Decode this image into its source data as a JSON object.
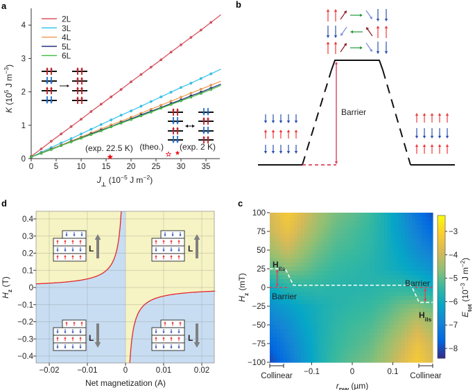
{
  "panel_labels": {
    "a": "a",
    "b": "b",
    "c": "c",
    "d": "d"
  },
  "chart_data": [
    {
      "panel": "a",
      "type": "line",
      "xlabel": [
        "J",
        "⊥",
        " (10",
        "−5",
        " J m",
        "−2",
        ")"
      ],
      "ylabel": [
        "K",
        " (10",
        "5",
        " J m",
        "−3",
        ")"
      ],
      "xlim": [
        0,
        38
      ],
      "ylim": [
        0,
        4.4
      ],
      "xticks": [
        "0",
        "5",
        "10",
        "15",
        "20",
        "25",
        "30",
        "35"
      ],
      "yticks": [
        "0",
        "1",
        "2",
        "3",
        "4"
      ],
      "grid": false,
      "legend": "top-left",
      "x": [
        0,
        2,
        4,
        6,
        8,
        10,
        12,
        14,
        16,
        18,
        20,
        22,
        24,
        26,
        28,
        30,
        32,
        34,
        36
      ],
      "series": [
        {
          "name": "2L",
          "color": "#d9545f",
          "values": [
            0.07,
            0.29,
            0.52,
            0.74,
            0.96,
            1.18,
            1.41,
            1.63,
            1.85,
            2.07,
            2.3,
            2.52,
            2.74,
            2.96,
            3.19,
            3.41,
            3.63,
            3.85,
            4.08
          ]
        },
        {
          "name": "3L",
          "color": "#35c6f0",
          "values": [
            0.05,
            0.19,
            0.33,
            0.47,
            0.6,
            0.74,
            0.88,
            1.02,
            1.16,
            1.3,
            1.43,
            1.57,
            1.71,
            1.85,
            1.99,
            2.13,
            2.26,
            2.4,
            2.54
          ]
        },
        {
          "name": "4L",
          "color": "#f0a055",
          "values": [
            0.05,
            0.17,
            0.29,
            0.41,
            0.53,
            0.65,
            0.77,
            0.89,
            1.01,
            1.12,
            1.24,
            1.36,
            1.48,
            1.6,
            1.72,
            1.84,
            1.96,
            2.08,
            2.2
          ]
        },
        {
          "name": "5L",
          "color": "#25307e",
          "values": [
            0.05,
            0.16,
            0.28,
            0.39,
            0.51,
            0.62,
            0.74,
            0.85,
            0.96,
            1.08,
            1.19,
            1.31,
            1.42,
            1.53,
            1.65,
            1.76,
            1.88,
            1.99,
            2.11
          ]
        },
        {
          "name": "6L",
          "color": "#4cc04a",
          "values": [
            0.05,
            0.16,
            0.27,
            0.39,
            0.5,
            0.61,
            0.72,
            0.83,
            0.95,
            1.06,
            1.17,
            1.28,
            1.39,
            1.51,
            1.62,
            1.73,
            1.84,
            1.95,
            2.07
          ]
        }
      ],
      "annotations": [
        {
          "text": "(exp. 22.5 K)",
          "x": 15.8,
          "y": 0.05,
          "marker": "filled-star",
          "color": "#e8141e"
        },
        {
          "text": "(theo.)",
          "x": 27.5,
          "y": 0.13,
          "marker": "hollow-star",
          "color": "#e8141e"
        },
        {
          "text": "(exp. 2 K)",
          "x": 29.3,
          "y": 0.17,
          "marker": "filled-star",
          "color": "#e8141e"
        }
      ]
    },
    {
      "panel": "b",
      "type": "diagram",
      "barrier_label": "Barrier",
      "colors": {
        "up": "#ee3a3a",
        "down": "#2a4fb0",
        "tilt_up": "#8b1a1a",
        "tilt_down": "#7a8fd6",
        "flip": "#1f9a3a",
        "barrier": "#d9425a"
      }
    },
    {
      "panel": "c",
      "type": "heatmap",
      "xlabel": [
        "r",
        "DW",
        " (µm)"
      ],
      "ylabel": [
        "H",
        "z",
        " (mT)"
      ],
      "xlim": [
        -0.2,
        0.2
      ],
      "ylim": [
        -100,
        100
      ],
      "xticks": [
        "−0.1",
        "0",
        "0.1"
      ],
      "yticks": [
        "100",
        "75",
        "50",
        "25",
        "0",
        "−25",
        "−50",
        "−75",
        "−100"
      ],
      "colorbar": {
        "label": [
          "E",
          "tot",
          " (10",
          "−3",
          " J m",
          "−2",
          ")"
        ],
        "range": [
          -8.4,
          -2.3
        ],
        "ticks": [
          "−3",
          "−4",
          "−5",
          "−6",
          "−7",
          "−8"
        ],
        "colormap": "parula"
      },
      "r": [
        -0.2,
        -0.16,
        -0.12,
        -0.08,
        -0.04,
        0,
        0.04,
        0.08,
        0.12,
        0.16,
        0.2
      ],
      "H": [
        100,
        75,
        50,
        25,
        0,
        -25,
        -50,
        -75,
        -100
      ],
      "values": [
        [
          -3.8,
          -3.2,
          -3.8,
          -4.4,
          -4.8,
          -5.0,
          -5.3,
          -5.8,
          -6.5,
          -7.3,
          -8.0
        ],
        [
          -4.0,
          -3.5,
          -4.1,
          -4.6,
          -5.0,
          -5.2,
          -5.4,
          -5.8,
          -6.4,
          -7.0,
          -7.6
        ],
        [
          -4.4,
          -4.0,
          -4.5,
          -4.9,
          -5.2,
          -5.3,
          -5.5,
          -5.8,
          -6.2,
          -6.7,
          -7.1
        ],
        [
          -5.0,
          -4.7,
          -4.9,
          -5.2,
          -5.4,
          -5.5,
          -5.6,
          -5.8,
          -6.0,
          -6.3,
          -6.6
        ],
        [
          -6.0,
          -5.6,
          -5.5,
          -5.5,
          -5.6,
          -5.6,
          -5.6,
          -5.5,
          -5.5,
          -5.6,
          -6.0
        ],
        [
          -6.6,
          -6.3,
          -6.0,
          -5.8,
          -5.6,
          -5.5,
          -5.4,
          -5.2,
          -4.9,
          -4.7,
          -5.0
        ],
        [
          -7.1,
          -6.7,
          -6.2,
          -5.8,
          -5.5,
          -5.3,
          -5.2,
          -4.9,
          -4.5,
          -4.0,
          -4.4
        ],
        [
          -7.6,
          -7.0,
          -6.4,
          -5.8,
          -5.4,
          -5.2,
          -5.0,
          -4.6,
          -4.1,
          -3.5,
          -4.0
        ],
        [
          -8.0,
          -7.3,
          -6.5,
          -5.8,
          -5.3,
          -5.0,
          -4.8,
          -4.4,
          -3.8,
          -3.2,
          -3.8
        ]
      ],
      "annotations": {
        "hils_left": [
          "H",
          "ils"
        ],
        "hils_right": [
          "H",
          "ils"
        ],
        "barrier_left": "Barrier",
        "barrier_right": "Barrier",
        "collinear_left": "Collinear",
        "collinear_right": "Collinear"
      },
      "hils_path": {
        "r": [
          -0.204,
          -0.165,
          -0.145,
          0.145,
          0.165,
          0.198
        ],
        "H": [
          25,
          25,
          3,
          3,
          -20,
          -20
        ]
      }
    },
    {
      "panel": "d",
      "type": "area",
      "xlabel": "Net magnetization (A)",
      "ylabel": [
        "H",
        "z",
        " (T)"
      ],
      "xlim": [
        -0.0235,
        0.0235
      ],
      "ylim": [
        -0.445,
        0.445
      ],
      "xticks": [
        "−0.02",
        "−0.01",
        "0",
        "0.01",
        "0.02"
      ],
      "xtick_values": [
        -0.02,
        -0.01,
        0,
        0.01,
        0.02
      ],
      "yticks": [
        "0.4",
        "0.3",
        "0.2",
        "0.1",
        "0",
        "−0.1",
        "−0.2",
        "−0.3",
        "−0.4"
      ],
      "ytick_values": [
        0.4,
        0.3,
        0.2,
        0.1,
        0,
        -0.1,
        -0.2,
        -0.3,
        -0.4
      ],
      "grid": true,
      "boundary_curve": {
        "M": [
          -0.0235,
          -0.02,
          -0.015,
          -0.01,
          -0.007,
          -0.005,
          -0.003,
          -0.002,
          -0.0015,
          -0.0012,
          0.0012,
          0.0015,
          0.002,
          0.003,
          0.005,
          0.007,
          0.01,
          0.015,
          0.02,
          0.0235
        ],
        "H": [
          0.021,
          0.025,
          0.033,
          0.05,
          0.071,
          0.1,
          0.167,
          0.25,
          0.333,
          0.417,
          -0.417,
          -0.333,
          -0.25,
          -0.167,
          -0.1,
          -0.071,
          -0.05,
          -0.033,
          -0.025,
          -0.021
        ]
      },
      "colors": {
        "upper_region": "#f6f3c4",
        "lower_region": "#c8ddf1",
        "curve": "#e3262b"
      },
      "inset_label": "L"
    }
  ]
}
